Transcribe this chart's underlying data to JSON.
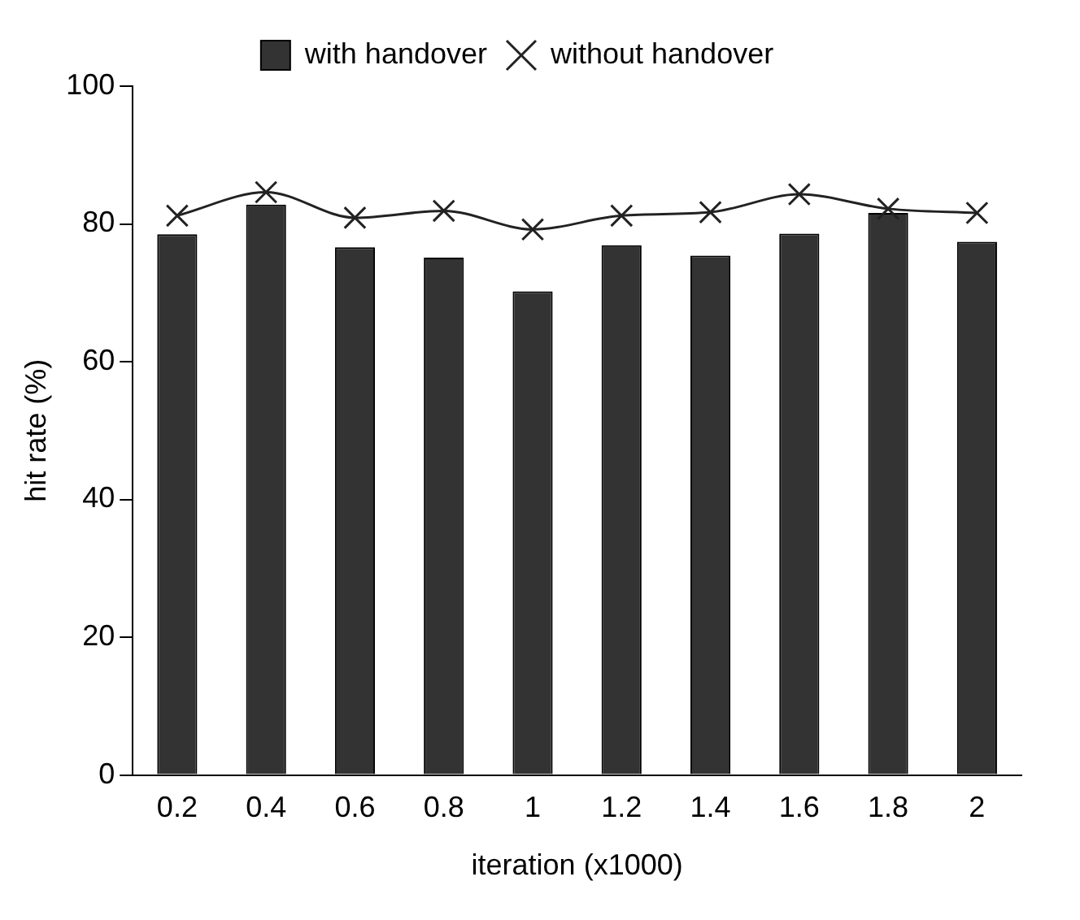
{
  "chart_data": {
    "type": "bar",
    "xlabel": "iteration (x1000)",
    "ylabel": "hit rate (%)",
    "categories": [
      "0.2",
      "0.4",
      "0.6",
      "0.8",
      "1",
      "1.2",
      "1.4",
      "1.6",
      "1.8",
      "2"
    ],
    "series": [
      {
        "name": "with handover",
        "color": "#333333",
        "values": [
          78.5,
          82.8,
          76.6,
          75.1,
          70.2,
          76.9,
          75.4,
          78.6,
          81.6,
          77.4
        ]
      },
      {
        "name": "without handover",
        "type": "line",
        "color": "#222222",
        "marker": "cross",
        "line_style": "solid",
        "values": [
          81.2,
          84.6,
          80.9,
          81.9,
          79.2,
          81.2,
          81.7,
          84.3,
          82.2,
          81.6
        ]
      }
    ],
    "ylim": [
      0,
      100
    ],
    "yticks": [
      0,
      20,
      40,
      60,
      80,
      100
    ],
    "grid": false,
    "legend": "top"
  }
}
